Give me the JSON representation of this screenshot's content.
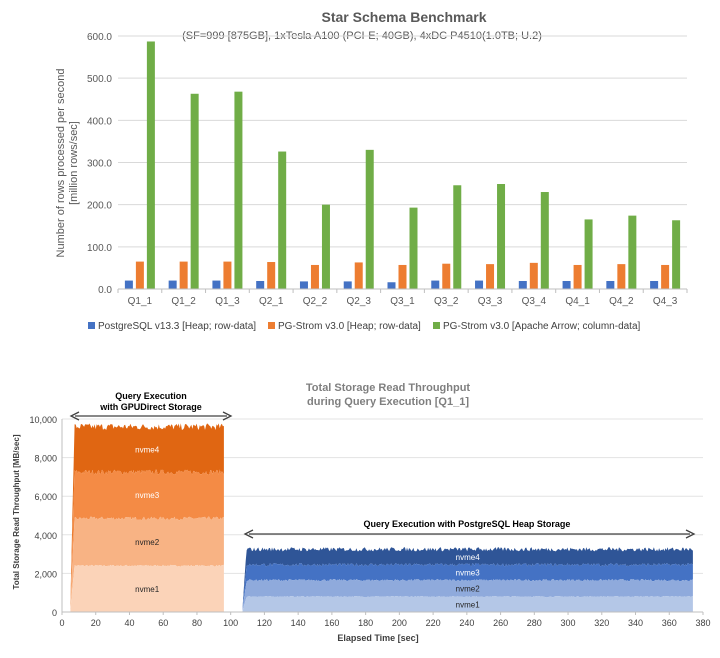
{
  "chart_data": [
    {
      "type": "bar",
      "title": "Star Schema Benchmark",
      "subtitle": "(SF=999 [875GB], 1xTesla A100 (PCI-E; 40GB), 4xDC P4510(1.0TB; U.2)",
      "ylabel_line1": "Number of rows processed per second",
      "ylabel_line2": "[million rows/sec]",
      "xlabel": "",
      "ylim": [
        0,
        600
      ],
      "yticks": [
        "0.0",
        "100.0",
        "200.0",
        "300.0",
        "400.0",
        "500.0",
        "600.0"
      ],
      "categories": [
        "Q1_1",
        "Q1_2",
        "Q1_3",
        "Q2_1",
        "Q2_2",
        "Q2_3",
        "Q3_1",
        "Q3_2",
        "Q3_3",
        "Q3_4",
        "Q4_1",
        "Q4_2",
        "Q4_3"
      ],
      "grid": true,
      "legend_position": "bottom",
      "series": [
        {
          "name": "PostgreSQL v13.3 [Heap; row-data]",
          "color": "#4472C4",
          "values": [
            20,
            20,
            20,
            19,
            18,
            18,
            16,
            20,
            20,
            19,
            19,
            19,
            19
          ]
        },
        {
          "name": "PG-Strom v3.0 [Heap; row-data]",
          "color": "#ED7D31",
          "values": [
            65,
            65,
            65,
            64,
            57,
            63,
            57,
            60,
            59,
            62,
            57,
            59,
            57
          ]
        },
        {
          "name": "PG-Strom v3.0 [Apache Arrow; column-data]",
          "color": "#70AD47",
          "values": [
            587,
            463,
            468,
            326,
            200,
            330,
            193,
            246,
            249,
            230,
            165,
            174,
            163
          ]
        }
      ]
    },
    {
      "type": "area",
      "title_line1": "Total Storage Read Throughput",
      "title_line2": "during Query Execution [Q1_1]",
      "xlabel": "Elapsed Time [sec]",
      "ylabel": "Total Storage Read Throughput [MB/sec]",
      "xlim": [
        0,
        380
      ],
      "ylim": [
        0,
        10000
      ],
      "xticks": [
        "0",
        "20",
        "40",
        "60",
        "80",
        "100",
        "120",
        "140",
        "160",
        "180",
        "200",
        "220",
        "240",
        "260",
        "280",
        "300",
        "320",
        "340",
        "360",
        "380"
      ],
      "yticks": [
        "0",
        "2,000",
        "4,000",
        "6,000",
        "8,000",
        "10,000"
      ],
      "annotations": {
        "left_line1": "Query Execution",
        "left_line2": "with GPUDirect Storage",
        "right": "Query Execution with PostgreSQL Heap Storage"
      },
      "left_block": {
        "x_start": 5,
        "x_end": 96,
        "stack_labels": [
          "nvme1",
          "nvme2",
          "nvme3",
          "nvme4"
        ],
        "colors": [
          "#FBD3B8",
          "#F8B384",
          "#F48B45",
          "#E06612"
        ],
        "tops": [
          2400,
          4850,
          7250,
          9600
        ]
      },
      "right_block": {
        "x_start": 107,
        "x_end": 374,
        "stack_labels": [
          "nvme1",
          "nvme2",
          "nvme3",
          "nvme4"
        ],
        "colors": [
          "#B4C7E7",
          "#8FAADC",
          "#4472C4",
          "#2F5597"
        ],
        "tops": [
          800,
          1650,
          2450,
          3250
        ]
      }
    }
  ]
}
